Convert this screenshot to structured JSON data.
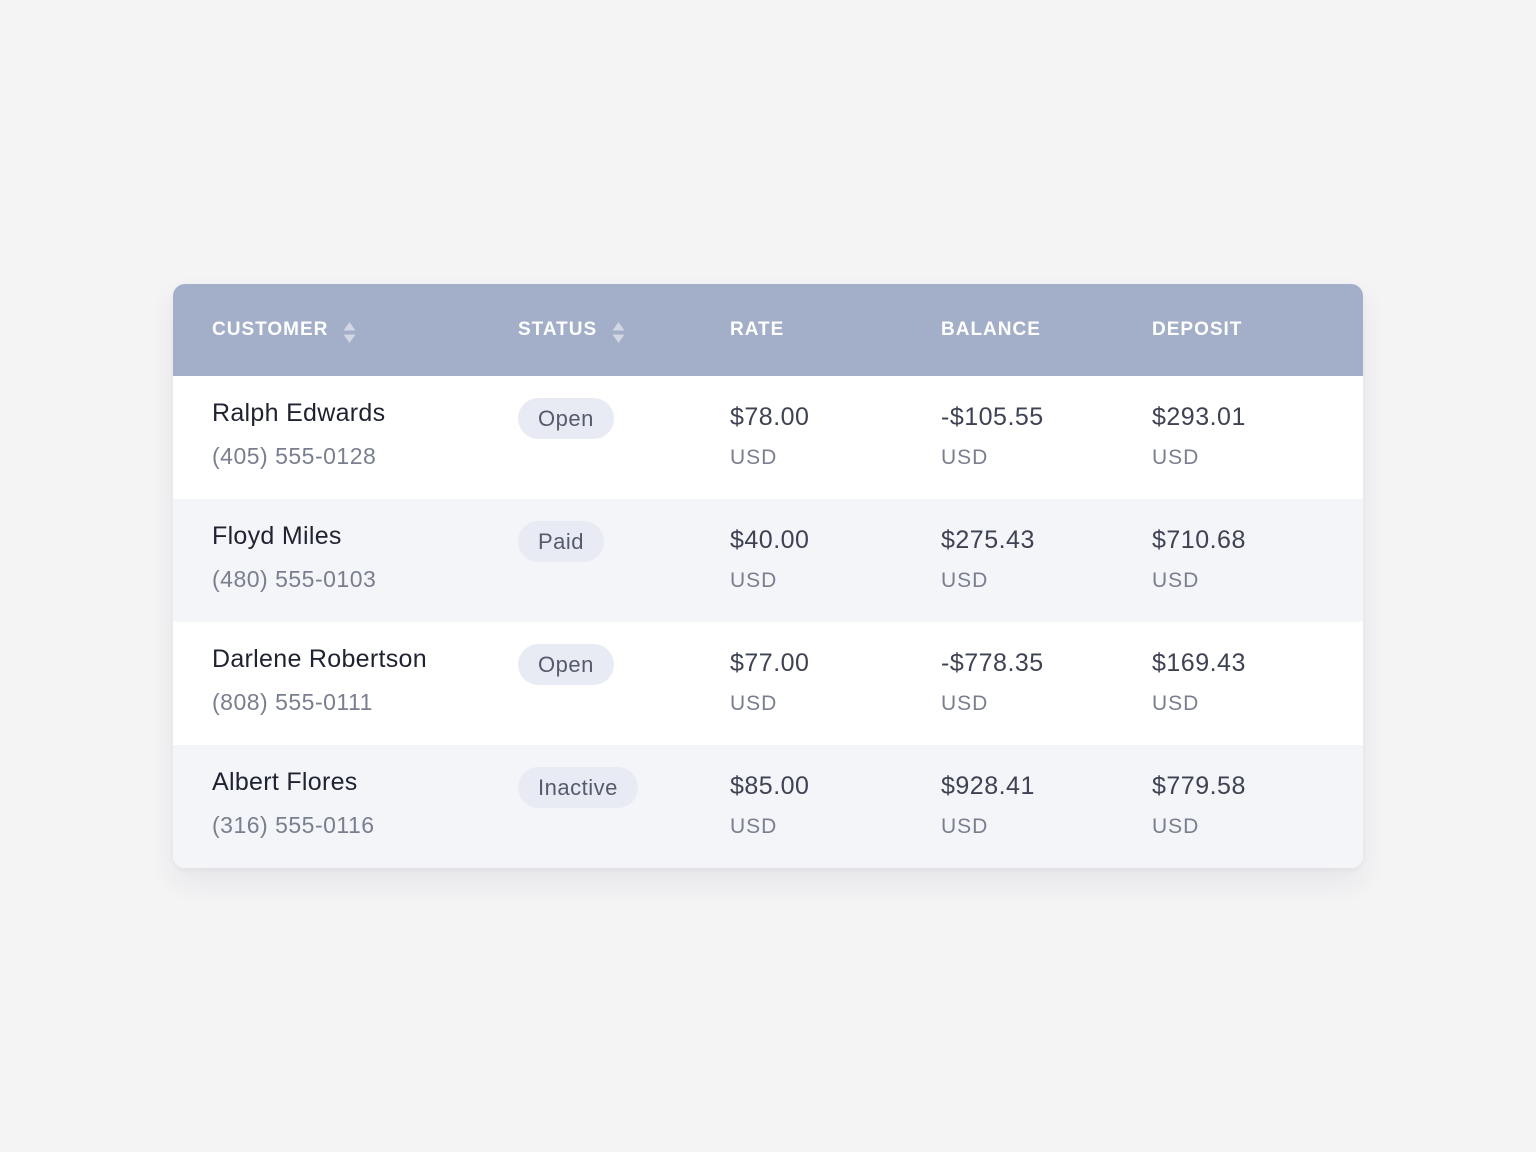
{
  "table": {
    "columns": {
      "customer": "CUSTOMER",
      "status": "STATUS",
      "rate": "RATE",
      "balance": "BALANCE",
      "deposit": "DEPOSIT"
    },
    "sortable_columns": [
      "customer",
      "status"
    ],
    "colors": {
      "header_background": "#a3aec9",
      "header_text": "#ffffff",
      "row_alt_background": "#f3f5f8",
      "badge_background": "#e8ebf3"
    },
    "rows": [
      {
        "name": "Ralph Edwards",
        "phone": "(405) 555-0128",
        "status": "Open",
        "rate": "$78.00",
        "rate_currency": "USD",
        "balance": "-$105.55",
        "balance_currency": "USD",
        "deposit": "$293.01",
        "deposit_currency": "USD"
      },
      {
        "name": "Floyd Miles",
        "phone": "(480) 555-0103",
        "status": "Paid",
        "rate": "$40.00",
        "rate_currency": "USD",
        "balance": "$275.43",
        "balance_currency": "USD",
        "deposit": "$710.68",
        "deposit_currency": "USD"
      },
      {
        "name": "Darlene Robertson",
        "phone": "(808) 555-0111",
        "status": "Open",
        "rate": "$77.00",
        "rate_currency": "USD",
        "balance": "-$778.35",
        "balance_currency": "USD",
        "deposit": "$169.43",
        "deposit_currency": "USD"
      },
      {
        "name": "Albert Flores",
        "phone": "(316) 555-0116",
        "status": "Inactive",
        "rate": "$85.00",
        "rate_currency": "USD",
        "balance": "$928.41",
        "balance_currency": "USD",
        "deposit": "$779.58",
        "deposit_currency": "USD"
      }
    ]
  }
}
